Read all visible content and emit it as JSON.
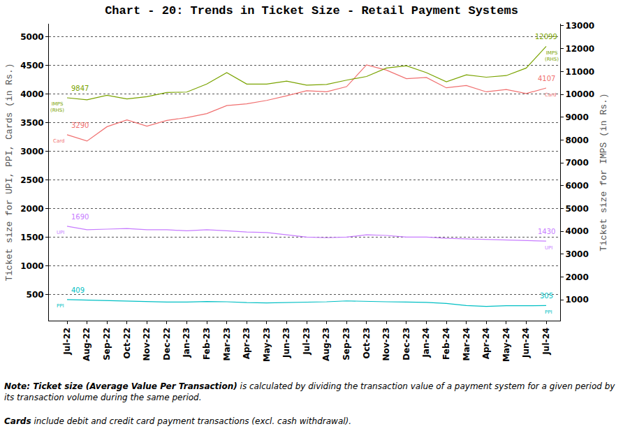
{
  "chart_data": {
    "type": "line",
    "title": "Chart - 20: Trends in Ticket Size - Retail Payment Systems",
    "ylabel": "Ticket size for UPI, PPI, Cards (in Rs.)",
    "y2label": "Ticket size for IMPS (in Rs.)",
    "categories": [
      "Jul-22",
      "Aug-22",
      "Sep-22",
      "Oct-22",
      "Nov-22",
      "Dec-22",
      "Jan-23",
      "Feb-23",
      "Mar-23",
      "Apr-23",
      "May-23",
      "Jun-23",
      "Jul-23",
      "Aug-23",
      "Sep-23",
      "Oct-23",
      "Nov-23",
      "Dec-23",
      "Jan-24",
      "Feb-24",
      "Mar-24",
      "Apr-24",
      "May-24",
      "Jun-24",
      "Jul-24"
    ],
    "ylim": [
      40,
      5230
    ],
    "yticks": [
      500,
      1000,
      1500,
      2000,
      2500,
      3000,
      3500,
      4000,
      4500,
      5000
    ],
    "y2lim": [
      90,
      13090
    ],
    "y2ticks": [
      1000,
      2000,
      3000,
      4000,
      5000,
      6000,
      7000,
      8000,
      9000,
      10000,
      11000,
      12000,
      13000
    ],
    "grid": true,
    "series": [
      {
        "name": "IMPS (RHS)",
        "color": "#7aa300",
        "axis": "y2",
        "values": [
          9847,
          9760,
          9960,
          9800,
          9900,
          10080,
          10100,
          10450,
          10950,
          10450,
          10450,
          10580,
          10400,
          10430,
          10620,
          10780,
          11150,
          11250,
          10950,
          10550,
          10850,
          10750,
          10820,
          11150,
          12099
        ],
        "value_labels": [
          "9847",
          null,
          null,
          null,
          null,
          null,
          null,
          null,
          null,
          null,
          null,
          null,
          null,
          null,
          null,
          null,
          null,
          null,
          null,
          null,
          null,
          null,
          null,
          null,
          "12099"
        ]
      },
      {
        "name": "Card",
        "color": "#f07070",
        "values": [
          3290,
          3180,
          3430,
          3550,
          3440,
          3540,
          3590,
          3660,
          3800,
          3830,
          3890,
          3970,
          4060,
          4040,
          4130,
          4510,
          4420,
          4270,
          4290,
          4110,
          4150,
          4040,
          4080,
          4010,
          4107
        ],
        "value_labels": [
          "3290",
          null,
          null,
          null,
          null,
          null,
          null,
          null,
          null,
          null,
          null,
          null,
          null,
          null,
          null,
          null,
          null,
          null,
          null,
          null,
          null,
          null,
          null,
          null,
          "4107"
        ]
      },
      {
        "name": "UPI",
        "color": "#c77cff",
        "values": [
          1690,
          1630,
          1640,
          1650,
          1630,
          1630,
          1610,
          1630,
          1610,
          1590,
          1580,
          1540,
          1500,
          1490,
          1500,
          1540,
          1530,
          1500,
          1500,
          1480,
          1470,
          1460,
          1450,
          1440,
          1430
        ],
        "value_labels": [
          "1690",
          null,
          null,
          null,
          null,
          null,
          null,
          null,
          null,
          null,
          null,
          null,
          null,
          null,
          null,
          null,
          null,
          null,
          null,
          null,
          null,
          null,
          null,
          null,
          "1430"
        ]
      },
      {
        "name": "PPI",
        "color": "#00bfc4",
        "values": [
          409,
          400,
          400,
          390,
          380,
          365,
          365,
          375,
          370,
          355,
          350,
          355,
          360,
          370,
          385,
          375,
          370,
          365,
          360,
          340,
          305,
          290,
          300,
          300,
          305
        ],
        "value_labels": [
          "409",
          null,
          null,
          null,
          null,
          null,
          null,
          null,
          null,
          null,
          null,
          null,
          null,
          null,
          null,
          null,
          null,
          null,
          null,
          null,
          null,
          null,
          null,
          null,
          "305"
        ]
      }
    ],
    "notes": [
      {
        "emphasis": "Note: Ticket size (Average Value Per Transaction)",
        "text": " is calculated by dividing the transaction value of a payment system for a given period by its transaction volume during the same period."
      },
      {
        "emphasis": "Cards",
        "text": " include debit and credit card payment transactions (excl. cash withdrawal)."
      }
    ]
  }
}
